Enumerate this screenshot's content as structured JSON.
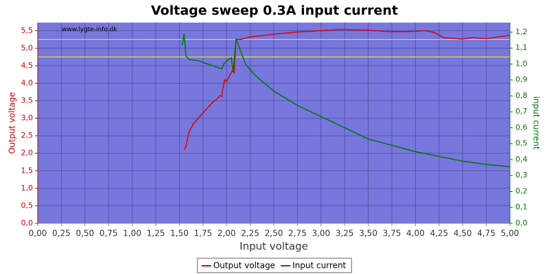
{
  "chart_data": {
    "type": "line",
    "title": "Voltage sweep 0.3A input current",
    "watermark": "www.lygte-info.dk",
    "x_label": "Input voltage",
    "y_label": "Output voltage",
    "y2_label": "input current",
    "y_color": "#cc0000",
    "y2_color": "#007700",
    "background": "#7777dd",
    "grid": true,
    "reference_lines": [
      5.25,
      4.75
    ],
    "reference_color": "#dddd44",
    "xlim": [
      0,
      5
    ],
    "xticks": [
      {
        "value": 0,
        "label": "0,00"
      },
      {
        "value": 0.25,
        "label": "0,25"
      },
      {
        "value": 0.5,
        "label": "0,50"
      },
      {
        "value": 0.75,
        "label": "0,75"
      },
      {
        "value": 1,
        "label": "1,00"
      },
      {
        "value": 1.25,
        "label": "1,25"
      },
      {
        "value": 1.5,
        "label": "1,50"
      },
      {
        "value": 1.75,
        "label": "1,75"
      },
      {
        "value": 2,
        "label": "2,00"
      },
      {
        "value": 2.25,
        "label": "2,25"
      },
      {
        "value": 2.5,
        "label": "2,50"
      },
      {
        "value": 2.75,
        "label": "2,75"
      },
      {
        "value": 3,
        "label": "3,00"
      },
      {
        "value": 3.25,
        "label": "3,25"
      },
      {
        "value": 3.5,
        "label": "3,50"
      },
      {
        "value": 3.75,
        "label": "3,75"
      },
      {
        "value": 4,
        "label": "4,00"
      },
      {
        "value": 4.25,
        "label": "4,25"
      },
      {
        "value": 4.5,
        "label": "4,50"
      },
      {
        "value": 4.75,
        "label": "4,75"
      },
      {
        "value": 5,
        "label": "5,00"
      }
    ],
    "ylim": [
      0,
      5.73
    ],
    "yticks": [
      {
        "value": 0,
        "label": "0,0"
      },
      {
        "value": 0.5,
        "label": "0,5"
      },
      {
        "value": 1,
        "label": "1,0"
      },
      {
        "value": 1.5,
        "label": "1,5"
      },
      {
        "value": 2,
        "label": "2,0"
      },
      {
        "value": 2.5,
        "label": "2,5"
      },
      {
        "value": 3,
        "label": "3,0"
      },
      {
        "value": 3.5,
        "label": "3,5"
      },
      {
        "value": 4,
        "label": "4,0"
      },
      {
        "value": 4.5,
        "label": "4,5"
      },
      {
        "value": 5,
        "label": "5,0"
      },
      {
        "value": 5.5,
        "label": "5,5"
      }
    ],
    "y2lim": [
      0,
      1.26
    ],
    "y2ticks": [
      {
        "value": 0,
        "label": "0,0"
      },
      {
        "value": 0.1,
        "label": "0,1"
      },
      {
        "value": 0.2,
        "label": "0,2"
      },
      {
        "value": 0.3,
        "label": "0,3"
      },
      {
        "value": 0.4,
        "label": "0,4"
      },
      {
        "value": 0.5,
        "label": "0,5"
      },
      {
        "value": 0.6,
        "label": "0,6"
      },
      {
        "value": 0.7,
        "label": "0,7"
      },
      {
        "value": 0.8,
        "label": "0,8"
      },
      {
        "value": 0.9,
        "label": "0,9"
      },
      {
        "value": 1,
        "label": "1,0"
      },
      {
        "value": 1.1,
        "label": "1,1"
      },
      {
        "value": 1.2,
        "label": "1,2"
      }
    ],
    "series": [
      {
        "name": "Output voltage",
        "color": "#dd0000",
        "x": [
          1.55,
          1.57,
          1.6,
          1.65,
          1.7,
          1.75,
          1.8,
          1.85,
          1.9,
          1.93,
          1.95,
          1.96,
          1.98,
          2.0,
          2.03,
          2.06,
          2.08,
          2.1,
          2.15,
          2.25,
          2.5,
          2.75,
          3.0,
          3.2,
          3.5,
          3.75,
          3.9,
          4.1,
          4.2,
          4.3,
          4.5,
          4.6,
          4.75,
          4.85,
          5.0
        ],
        "values": [
          2.1,
          2.2,
          2.6,
          2.85,
          3.0,
          3.15,
          3.3,
          3.45,
          3.55,
          3.65,
          3.62,
          3.85,
          4.1,
          4.05,
          4.2,
          4.35,
          4.3,
          5.25,
          5.25,
          5.32,
          5.4,
          5.46,
          5.5,
          5.53,
          5.51,
          5.47,
          5.47,
          5.5,
          5.45,
          5.3,
          5.26,
          5.3,
          5.27,
          5.31,
          5.37
        ]
      },
      {
        "name": "Input current",
        "color": "#007700",
        "axis": "y2",
        "x": [
          1.53,
          1.55,
          1.57,
          1.6,
          1.7,
          1.8,
          1.9,
          1.95,
          1.97,
          2.0,
          2.05,
          2.07,
          2.1,
          2.15,
          2.2,
          2.3,
          2.5,
          2.75,
          3.0,
          3.25,
          3.5,
          3.75,
          4.0,
          4.25,
          4.5,
          4.75,
          5.0
        ],
        "values": [
          1.12,
          1.19,
          1.05,
          1.03,
          1.02,
          1.0,
          0.98,
          0.97,
          1.0,
          1.02,
          1.04,
          0.95,
          1.16,
          1.08,
          1.0,
          0.93,
          0.83,
          0.74,
          0.67,
          0.6,
          0.53,
          0.49,
          0.45,
          0.42,
          0.39,
          0.37,
          0.355
        ]
      }
    ]
  }
}
